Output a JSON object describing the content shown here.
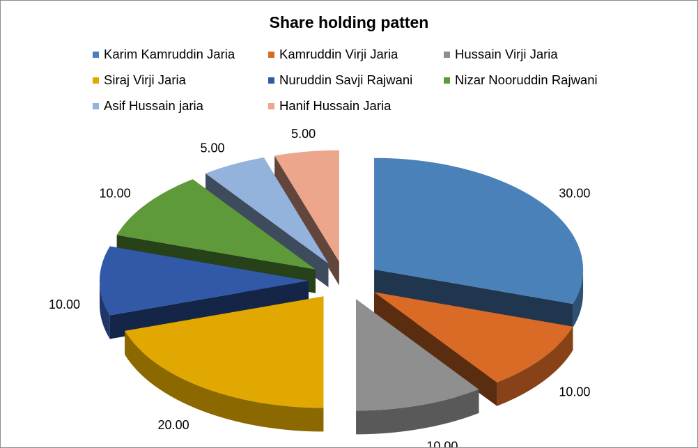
{
  "chart_data": {
    "type": "pie",
    "title": "Share holding patten",
    "style": "3d-exploded",
    "legend_position": "top",
    "data_labels_decimals": 2,
    "slices": [
      {
        "name": "Karim Kamruddin Jaria",
        "value": 30,
        "color": "#4a81b9"
      },
      {
        "name": "Kamruddin Virji Jaria",
        "value": 10,
        "color": "#d96b27"
      },
      {
        "name": "Hussain Virji Jaria",
        "value": 10,
        "color": "#8f8f8f"
      },
      {
        "name": "Siraj Virji Jaria",
        "value": 20,
        "color": "#e0a800"
      },
      {
        "name": "Nuruddin Savji Rajwani",
        "value": 10,
        "color": "#3258a8"
      },
      {
        "name": "Nizar Nooruddin Rajwani",
        "value": 10,
        "color": "#5e9a3a"
      },
      {
        "name": "Asif Hussain jaria",
        "value": 5,
        "color": "#93b3dd"
      },
      {
        "name": "Hanif Hussain Jaria",
        "value": 5,
        "color": "#eba68c"
      }
    ]
  }
}
